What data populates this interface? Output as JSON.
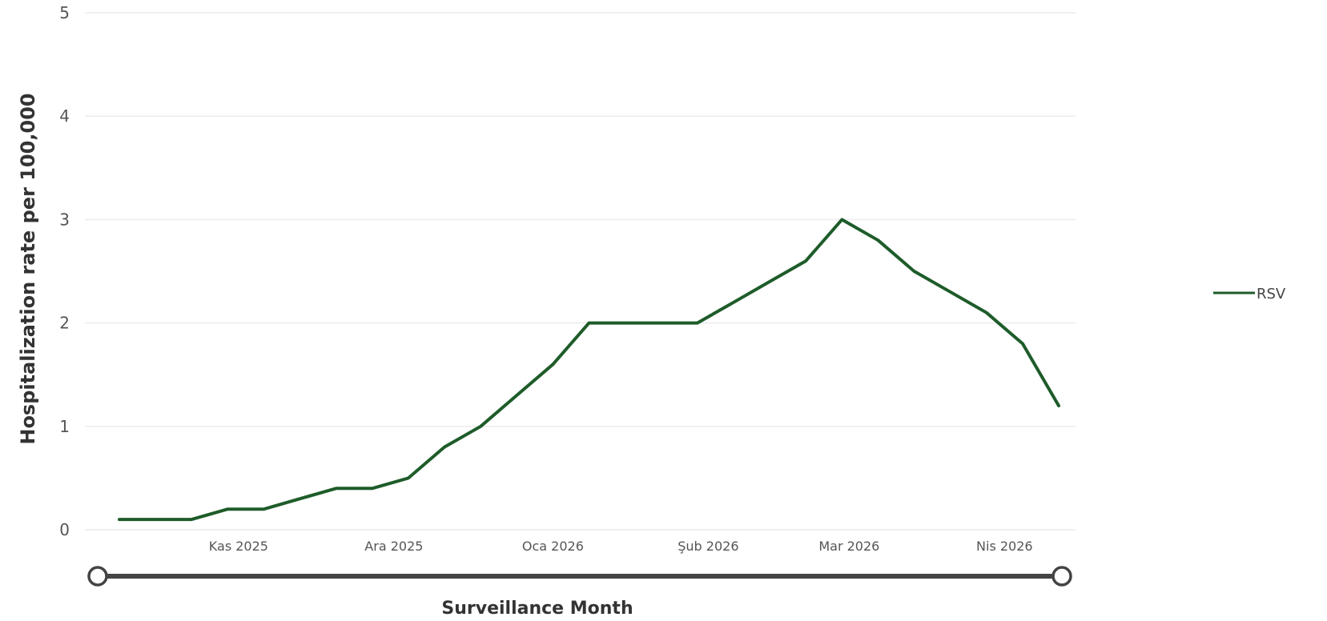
{
  "chart_data": {
    "type": "line",
    "title": "",
    "xlabel": "Surveillance Month",
    "ylabel": "Hospitalization rate per 100,000",
    "ylim": [
      0,
      5
    ],
    "yticks": [
      0,
      1,
      2,
      3,
      4,
      5
    ],
    "grid": true,
    "legend": "right",
    "xtick_labels": [
      {
        "label": "Kas 2025",
        "at": 3.3
      },
      {
        "label": "Ara 2025",
        "at": 7.6
      },
      {
        "label": "Oca 2026",
        "at": 12.0
      },
      {
        "label": "Şub 2026",
        "at": 16.3
      },
      {
        "label": "Mar 2026",
        "at": 20.2
      },
      {
        "label": "Nis 2026",
        "at": 24.5
      }
    ],
    "series": [
      {
        "name": "RSV",
        "color": "#1e5c2a",
        "x": [
          0,
          1,
          2,
          3,
          4,
          5,
          6,
          7,
          8,
          9,
          10,
          11,
          12,
          13,
          14,
          15,
          16,
          17,
          18,
          19,
          20,
          21,
          22,
          23,
          24,
          25,
          26
        ],
        "values": [
          0.1,
          0.1,
          0.1,
          0.2,
          0.2,
          0.3,
          0.4,
          0.4,
          0.5,
          0.8,
          1.0,
          1.3,
          1.6,
          2.0,
          2.0,
          2.0,
          2.0,
          2.2,
          2.4,
          2.6,
          3.0,
          2.8,
          2.5,
          2.3,
          2.1,
          1.8,
          1.2
        ]
      }
    ],
    "range_slider": {
      "start": 0,
      "end": 26
    }
  }
}
